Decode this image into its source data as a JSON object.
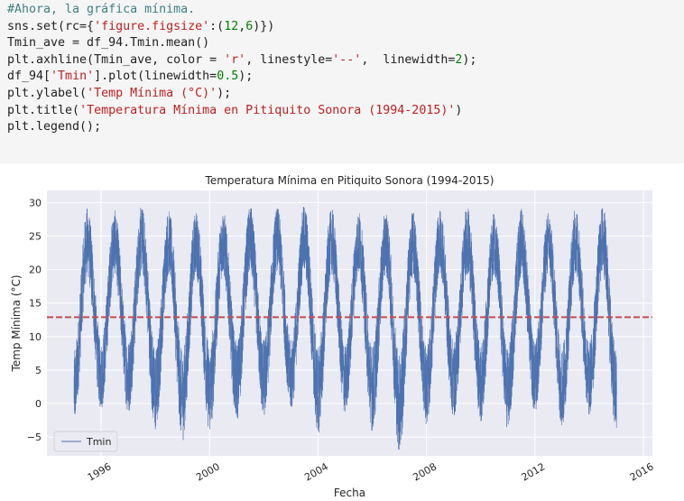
{
  "code_cell": {
    "lines": [
      [
        {
          "t": "#Ahora, la gráfica mínima.",
          "k": "comment"
        }
      ],
      [
        {
          "t": "sns.set(rc={",
          "k": ""
        },
        {
          "t": "'figure.figsize'",
          "k": "str"
        },
        {
          "t": ":(",
          "k": ""
        },
        {
          "t": "12",
          "k": "num"
        },
        {
          "t": ",",
          "k": ""
        },
        {
          "t": "6",
          "k": "num"
        },
        {
          "t": ")})",
          "k": ""
        }
      ],
      [
        {
          "t": "Tmin_ave = df_94.Tmin.mean()",
          "k": ""
        }
      ],
      [
        {
          "t": "plt.axhline(Tmin_ave, color = ",
          "k": ""
        },
        {
          "t": "'r'",
          "k": "str"
        },
        {
          "t": ", linestyle=",
          "k": ""
        },
        {
          "t": "'--'",
          "k": "str"
        },
        {
          "t": ",  linewidth=",
          "k": ""
        },
        {
          "t": "2",
          "k": "num"
        },
        {
          "t": ");",
          "k": ""
        }
      ],
      [
        {
          "t": "df_94[",
          "k": ""
        },
        {
          "t": "'Tmin'",
          "k": "str"
        },
        {
          "t": "].plot(linewidth=",
          "k": ""
        },
        {
          "t": "0.5",
          "k": "num"
        },
        {
          "t": ");",
          "k": ""
        }
      ],
      [
        {
          "t": "plt.ylabel(",
          "k": ""
        },
        {
          "t": "'Temp Mínima (°C)'",
          "k": "str"
        },
        {
          "t": ");",
          "k": ""
        }
      ],
      [
        {
          "t": "plt.title(",
          "k": ""
        },
        {
          "t": "'Temperatura Mínima en Pitiquito Sonora (1994-2015)'",
          "k": "str"
        },
        {
          "t": ")",
          "k": ""
        }
      ],
      [
        {
          "t": "plt.legend();",
          "k": ""
        }
      ]
    ]
  },
  "colors": {
    "series": "#4c72b0",
    "mean_line": "#c44e52",
    "plot_bg": "#eaeaf2",
    "grid": "#ffffff"
  },
  "chart_data": {
    "type": "line",
    "title": "Temperatura Mínima en Pitiquito Sonora (1994-2015)",
    "xlabel": "Fecha",
    "ylabel": "Temp Mínima (°C)",
    "xlim": [
      "1994-01-01",
      "2016-05-01"
    ],
    "ylim": [
      -7.8,
      31.8
    ],
    "yticks": [
      -5,
      0,
      5,
      10,
      15,
      20,
      25,
      30
    ],
    "xticks": [
      "1996",
      "2000",
      "2004",
      "2008",
      "2012",
      "2016"
    ],
    "grid": true,
    "legend": {
      "position": "lower-left",
      "entries": [
        "Tmin"
      ]
    },
    "mean_line": {
      "value": 12.9,
      "style": "dashed"
    },
    "series": [
      {
        "name": "Tmin",
        "data_start": "1995-01-01",
        "data_end": "2015-01-01",
        "seasonal_monthly_min": [
          {
            "date": "1995-01",
            "min": -3.8,
            "max": 8.2
          },
          {
            "date": "1995-07",
            "min": 18.5,
            "max": 29.6
          },
          {
            "date": "1996-01",
            "min": -1.2,
            "max": 9.5
          },
          {
            "date": "1996-07",
            "min": 19.0,
            "max": 29.2
          },
          {
            "date": "1997-01",
            "min": -1.8,
            "max": 9.8
          },
          {
            "date": "1997-07",
            "min": 19.2,
            "max": 29.8
          },
          {
            "date": "1998-01",
            "min": -4.8,
            "max": 8.5
          },
          {
            "date": "1998-07",
            "min": 19.0,
            "max": 29.2
          },
          {
            "date": "1999-01",
            "min": -6.0,
            "max": 8.0
          },
          {
            "date": "1999-07",
            "min": 19.0,
            "max": 29.0
          },
          {
            "date": "2000-01",
            "min": -4.8,
            "max": 9.0
          },
          {
            "date": "2000-07",
            "min": 18.8,
            "max": 29.2
          },
          {
            "date": "2001-01",
            "min": -3.0,
            "max": 9.5
          },
          {
            "date": "2001-07",
            "min": 19.0,
            "max": 29.8
          },
          {
            "date": "2002-01",
            "min": -2.5,
            "max": 10.0
          },
          {
            "date": "2002-07",
            "min": 19.5,
            "max": 29.6
          },
          {
            "date": "2003-01",
            "min": -1.5,
            "max": 9.5
          },
          {
            "date": "2003-07",
            "min": 19.0,
            "max": 30.0
          },
          {
            "date": "2004-01",
            "min": -5.0,
            "max": 8.8
          },
          {
            "date": "2004-07",
            "min": 19.0,
            "max": 29.4
          },
          {
            "date": "2005-01",
            "min": -2.0,
            "max": 9.0
          },
          {
            "date": "2005-07",
            "min": 19.0,
            "max": 29.0
          },
          {
            "date": "2006-01",
            "min": -4.5,
            "max": 9.0
          },
          {
            "date": "2006-07",
            "min": 19.0,
            "max": 29.0
          },
          {
            "date": "2007-01",
            "min": -7.8,
            "max": 8.0
          },
          {
            "date": "2007-07",
            "min": 18.5,
            "max": 29.0
          },
          {
            "date": "2008-01",
            "min": -3.5,
            "max": 8.5
          },
          {
            "date": "2008-07",
            "min": 19.2,
            "max": 29.4
          },
          {
            "date": "2009-01",
            "min": -2.5,
            "max": 9.5
          },
          {
            "date": "2009-07",
            "min": 19.0,
            "max": 29.8
          },
          {
            "date": "2010-01",
            "min": -3.0,
            "max": 9.0
          },
          {
            "date": "2010-07",
            "min": 19.0,
            "max": 29.0
          },
          {
            "date": "2011-01",
            "min": -4.5,
            "max": 8.5
          },
          {
            "date": "2011-07",
            "min": 18.8,
            "max": 29.4
          },
          {
            "date": "2012-01",
            "min": -2.0,
            "max": 9.5
          },
          {
            "date": "2012-07",
            "min": 19.0,
            "max": 29.0
          },
          {
            "date": "2013-01",
            "min": -4.0,
            "max": 9.0
          },
          {
            "date": "2013-07",
            "min": 19.0,
            "max": 29.6
          },
          {
            "date": "2014-01",
            "min": -2.5,
            "max": 9.5
          },
          {
            "date": "2014-07",
            "min": 19.0,
            "max": 30.0
          },
          {
            "date": "2015-01",
            "min": -5.5,
            "max": 8.5
          }
        ]
      }
    ]
  }
}
